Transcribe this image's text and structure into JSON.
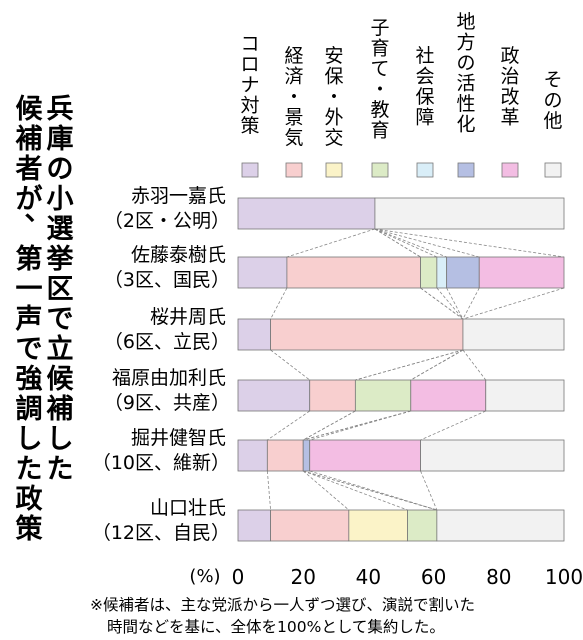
{
  "chart_data": {
    "type": "bar",
    "stacked": true,
    "orientation": "horizontal",
    "title_lines": [
      "兵庫の小選挙区で立候補した",
      "候補者が、第一声で強調した政策"
    ],
    "categories": [
      {
        "name": "赤羽一嘉氏",
        "sub": "（2区・公明）"
      },
      {
        "name": "佐藤泰樹氏",
        "sub": "（3区、国民）"
      },
      {
        "name": "桜井周氏",
        "sub": "（6区、立民）"
      },
      {
        "name": "福原由加利氏",
        "sub": "（9区、共産）"
      },
      {
        "name": "掘井健智氏",
        "sub": "（10区、維新）"
      },
      {
        "name": "山口壮氏",
        "sub": "（12区、自民）"
      }
    ],
    "series": [
      {
        "name": "コロナ対策",
        "color": "#dcd0e8",
        "values": [
          42,
          15,
          10,
          22,
          9,
          10
        ]
      },
      {
        "name": "経済・景気",
        "color": "#f8cfcf",
        "values": [
          0,
          41,
          59,
          14,
          11,
          24
        ]
      },
      {
        "name": "安保・外交",
        "color": "#fbf3c8",
        "values": [
          0,
          0,
          0,
          0,
          0,
          18
        ]
      },
      {
        "name": "子育て・教育",
        "color": "#dcebc6",
        "values": [
          0,
          5,
          0,
          17,
          0,
          9
        ]
      },
      {
        "name": "社会保障",
        "color": "#d9eef8",
        "values": [
          0,
          3,
          0,
          0,
          0,
          0
        ]
      },
      {
        "name": "地方の活性化",
        "color": "#b5bfe3",
        "values": [
          0,
          10,
          0,
          0,
          2,
          0
        ]
      },
      {
        "name": "政治改革",
        "color": "#f3bde3",
        "values": [
          0,
          26,
          0,
          23,
          34,
          0
        ]
      },
      {
        "name": "その他",
        "color": "#f2f2f2",
        "values": [
          58,
          0,
          31,
          24,
          44,
          39
        ]
      }
    ],
    "x_unit": "(%)",
    "x_ticks": [
      0,
      20,
      40,
      60,
      80,
      100
    ],
    "xlim": [
      0,
      100
    ],
    "footnote": [
      "※候補者は、主な党派から一人ずつ選び、演説で割いた",
      "時間などを基に、全体を100%として集約した。"
    ]
  }
}
